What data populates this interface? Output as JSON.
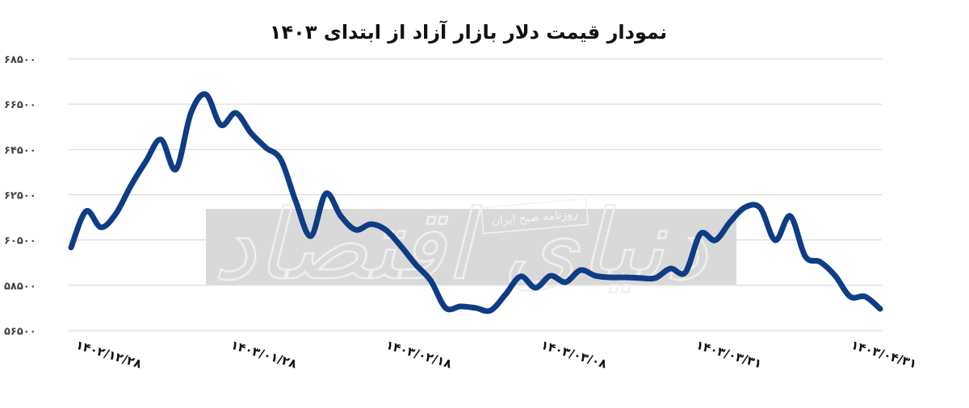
{
  "chart_data": {
    "type": "line",
    "title": "نمودار قیمت دلار بازار آزاد از ابتدای ۱۴۰۳",
    "xlabel": "",
    "ylabel": "",
    "ylim": [
      56500,
      68500
    ],
    "yticks": [
      56500,
      58500,
      60500,
      62500,
      64500,
      66500,
      68500
    ],
    "ytick_labels": [
      "۵۶۵۰۰",
      "۵۸۵۰۰",
      "۶۰۵۰۰",
      "۶۲۵۰۰",
      "۶۴۵۰۰",
      "۶۶۵۰۰",
      "۶۸۵۰۰"
    ],
    "xtick_labels": [
      "۱۴۰۲/۱۲/۲۸",
      "۱۴۰۳/۰۱/۲۸",
      "۱۴۰۳/۰۲/۱۸",
      "۱۴۰۳/۰۳/۰۸",
      "۱۴۰۳/۰۳/۳۱",
      "۱۴۰۳/۰۴/۳۱"
    ],
    "grid": true,
    "legend": "none",
    "line_color": "#0e3d85",
    "series": [
      {
        "values": [
          60170,
          61770,
          61060,
          61670,
          62910,
          63980,
          64940,
          63620,
          66110,
          66930,
          65580,
          66110,
          65230,
          64580,
          64050,
          62200,
          60670,
          62550,
          61560,
          60950,
          61200,
          60950,
          60240,
          59420,
          58710,
          57500,
          57570,
          57500,
          57390,
          58100,
          58890,
          58390,
          58920,
          58640,
          59170,
          58920,
          58850,
          58850,
          58820,
          58820,
          59240,
          59070,
          60770,
          60490,
          61310,
          61950,
          61910,
          60490,
          61560,
          59780,
          59530,
          58920,
          58000,
          58000,
          57460
        ]
      }
    ]
  },
  "watermark": {
    "logo_text": "دنیای اقتصاد",
    "caption": "روزنامه صبح ایران",
    "box_color": "#d9d9d9"
  }
}
